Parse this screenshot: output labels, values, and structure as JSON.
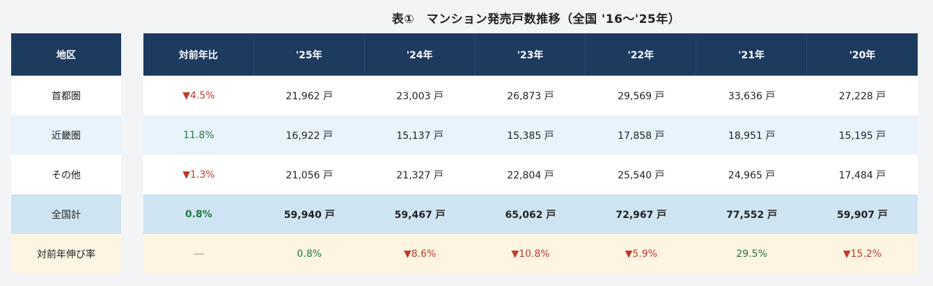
{
  "title": "表①　マンション発売戸数推移（全国 '16～'25年）",
  "header": {
    "region": "地区",
    "yoy": "対前年比",
    "years": [
      "'25年",
      "'24年",
      "'23年",
      "'22年",
      "'21年",
      "'20年"
    ]
  },
  "rows": [
    {
      "region": "首都圏",
      "yoy": "▼4.5%",
      "values": [
        "21,962 戸",
        "23,003 戸",
        "26,873 戸",
        "29,569 戸",
        "33,636 戸",
        "27,228 戸"
      ]
    },
    {
      "region": "近畿圏",
      "yoy": "11.8%",
      "values": [
        "16,922 戸",
        "15,137 戸",
        "15,385 戸",
        "17,858 戸",
        "18,951 戸",
        "15,195 戸"
      ]
    },
    {
      "region": "その他",
      "yoy": "▼1.3%",
      "values": [
        "21,056 戸",
        "21,327 戸",
        "22,804 戸",
        "25,540 戸",
        "24,965 戸",
        "17,484 戸"
      ]
    },
    {
      "region": "全国計",
      "yoy": "0.8%",
      "values": [
        "59,940 戸",
        "59,467 戸",
        "65,062 戸",
        "72,967 戸",
        "77,552 戸",
        "59,907 戸"
      ]
    }
  ],
  "growth": {
    "label": "対前年伸び率",
    "yoy": "―",
    "values": [
      "0.8%",
      "▼8.6%",
      "▼10.8%",
      "▼5.9%",
      "29.5%",
      "▼15.2%"
    ]
  },
  "colors": {
    "header_bg": "#1d3a5f",
    "down": "#c0392b",
    "up": "#1e7a3c"
  }
}
